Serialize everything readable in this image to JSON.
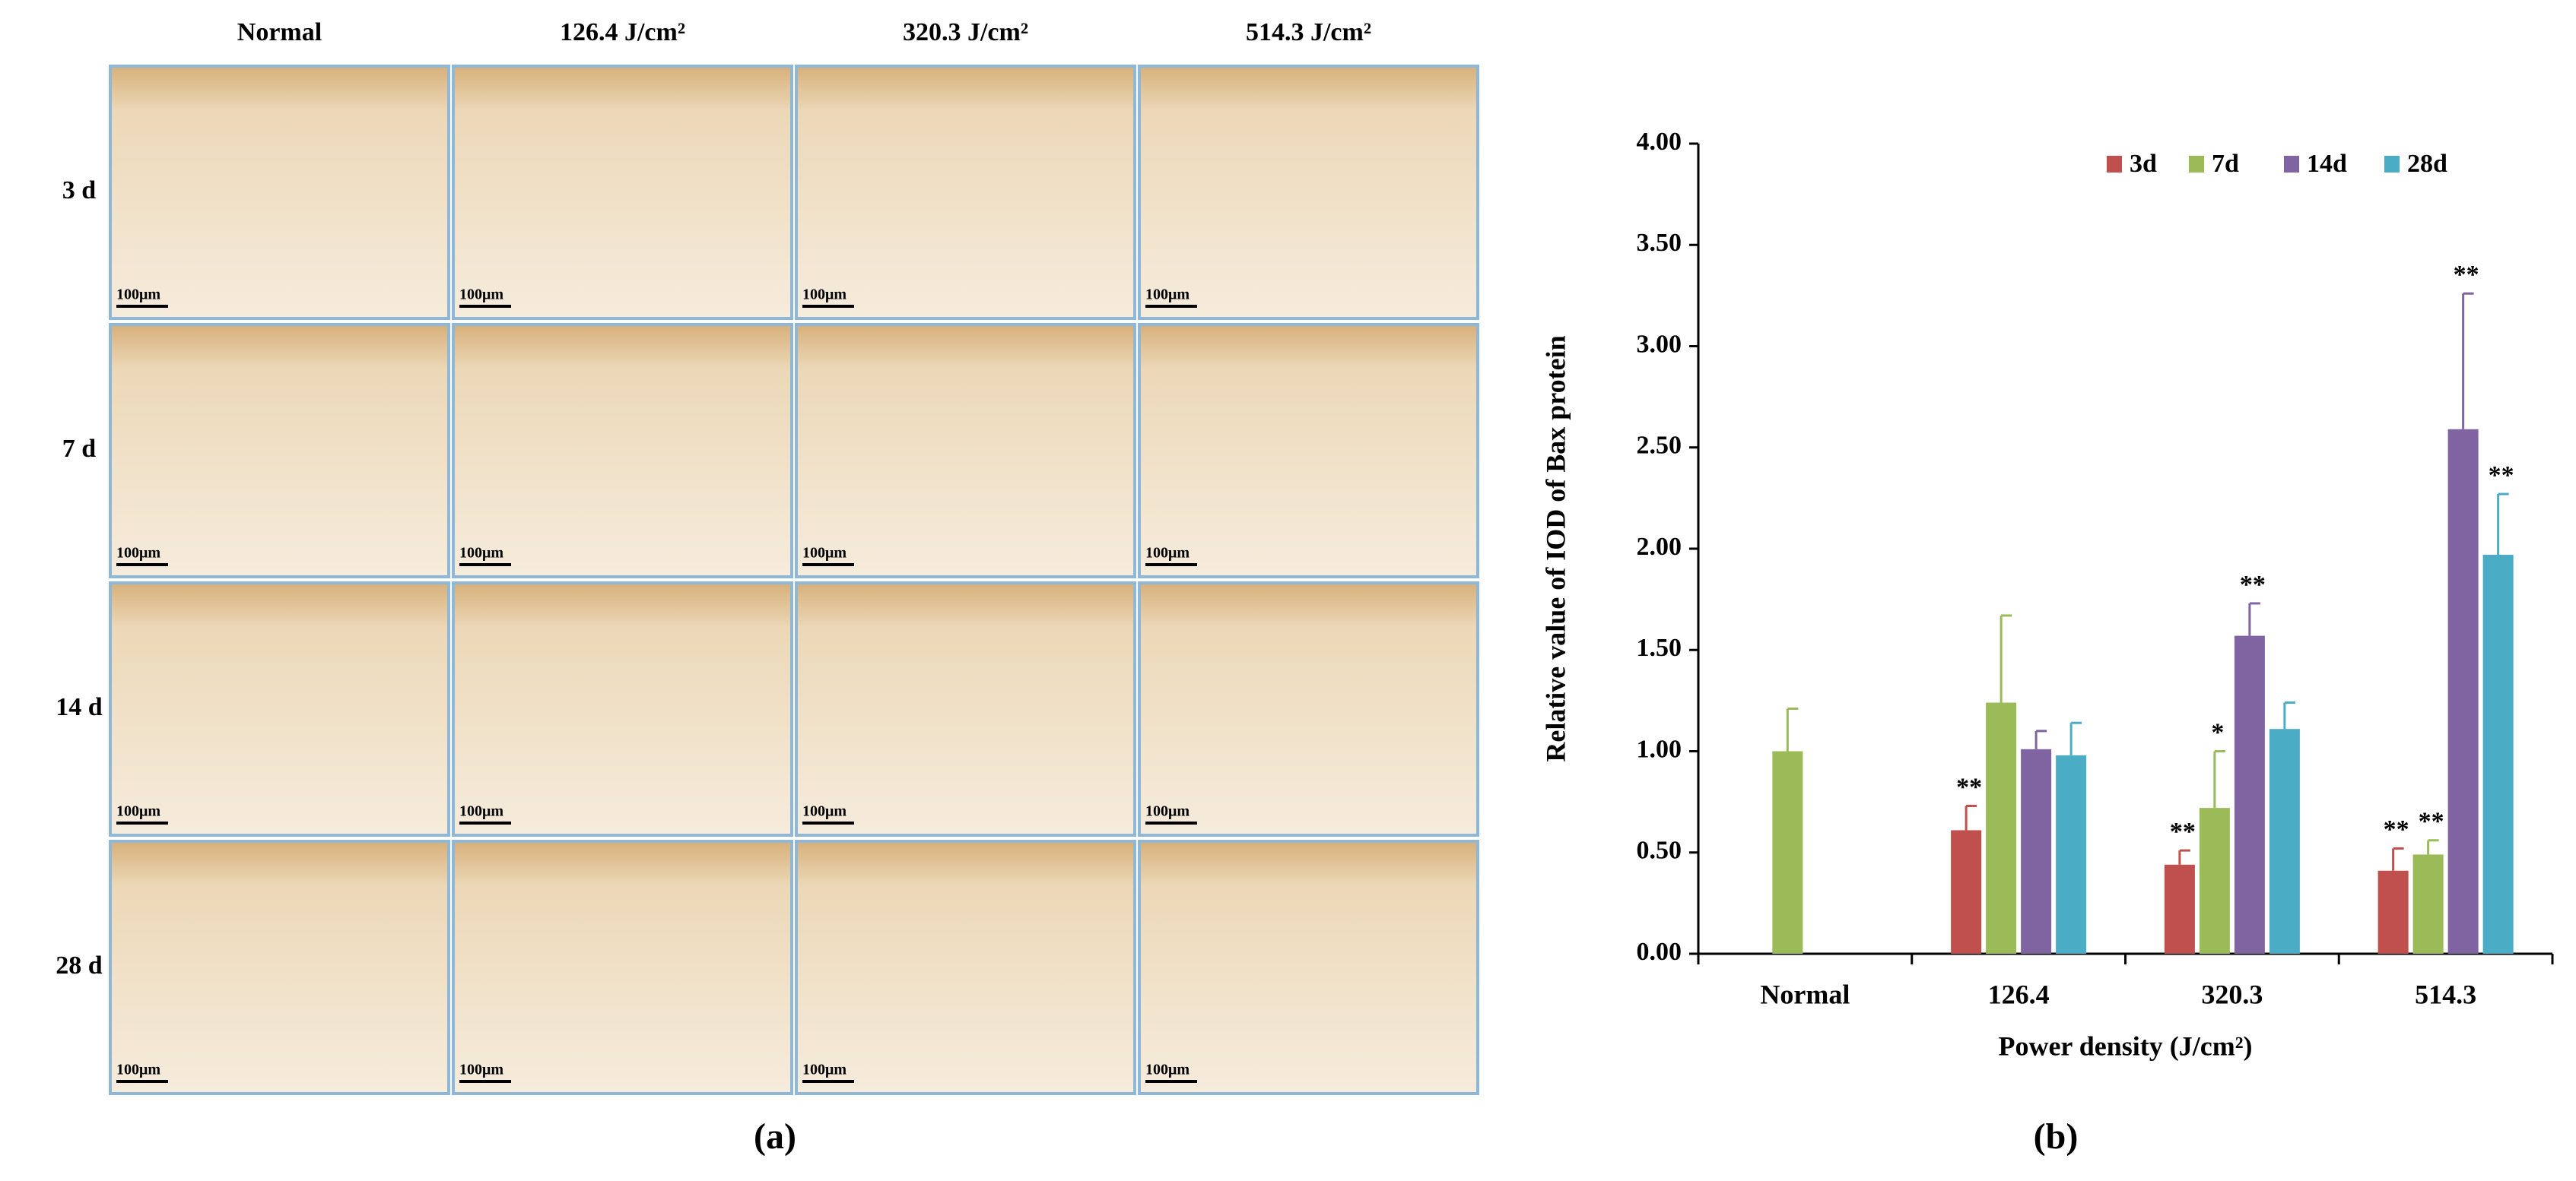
{
  "panel_a": {
    "label": "(a)",
    "column_headers": [
      "Normal",
      "126.4 J/cm²",
      "320.3 J/cm²",
      "514.3 J/cm²"
    ],
    "row_headers": [
      "3 d",
      "7 d",
      "14 d",
      "28 d"
    ],
    "scale_bar": "100μm"
  },
  "panel_b_label": "(b)",
  "chart_data": {
    "type": "bar",
    "y_label": "Relative value of IOD of Bax protein",
    "x_label": "Power density (J/cm²)",
    "categories": [
      "Normal",
      "126.4",
      "320.3",
      "514.3"
    ],
    "series": [
      {
        "name": "3d",
        "color": "#c0504d",
        "values": [
          null,
          0.61,
          0.44,
          0.41
        ],
        "errors": [
          null,
          0.12,
          0.07,
          0.11
        ],
        "significance": [
          null,
          "**",
          "**",
          "**"
        ]
      },
      {
        "name": "7d",
        "color": "#9bbb59",
        "values": [
          1.0,
          1.24,
          0.72,
          0.49
        ],
        "errors": [
          0.21,
          0.43,
          0.28,
          0.07
        ],
        "significance": [
          null,
          null,
          "*",
          "**"
        ]
      },
      {
        "name": "14d",
        "color": "#8064a2",
        "values": [
          null,
          1.01,
          1.57,
          2.59
        ],
        "errors": [
          null,
          0.09,
          0.16,
          0.67
        ],
        "significance": [
          null,
          null,
          "**",
          "**"
        ]
      },
      {
        "name": "28d",
        "color": "#4bacc6",
        "values": [
          null,
          0.98,
          1.11,
          1.97
        ],
        "errors": [
          null,
          0.16,
          0.13,
          0.3
        ],
        "significance": [
          null,
          null,
          null,
          "**"
        ]
      }
    ],
    "ylim": [
      0,
      4
    ],
    "yticks": [
      {
        "value": 0,
        "label": "0.00"
      },
      {
        "value": 0.5,
        "label": "0.50"
      },
      {
        "value": 1,
        "label": "1.00"
      },
      {
        "value": 1.5,
        "label": "1.50"
      },
      {
        "value": 2,
        "label": "2.00"
      },
      {
        "value": 2.5,
        "label": "2.50"
      },
      {
        "value": 3,
        "label": "3.00"
      },
      {
        "value": 3.5,
        "label": "3.50"
      },
      {
        "value": 4,
        "label": "4.00"
      }
    ],
    "legend": "top-right"
  }
}
